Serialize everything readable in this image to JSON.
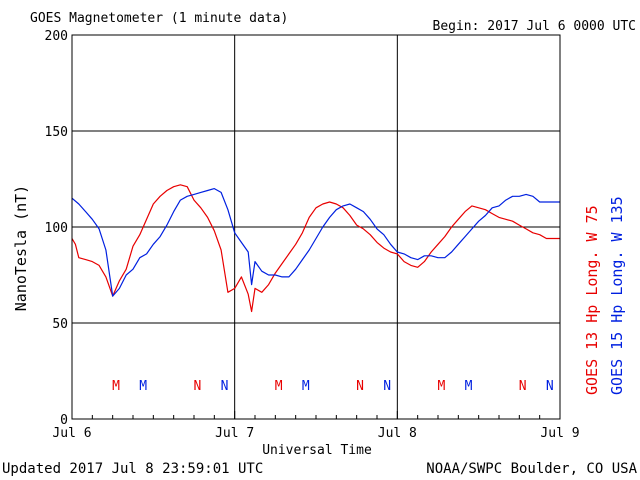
{
  "chart_data": {
    "type": "line",
    "title": "GOES Magnetometer (1 minute data)",
    "begin_label": "Begin:  2017 Jul 6 0000 UTC",
    "xlabel": "Universal Time",
    "ylabel": "NanoTesla (nT)",
    "ylim": [
      0,
      200
    ],
    "xlim": [
      0,
      72
    ],
    "y_ticks": [
      0,
      50,
      100,
      150,
      200
    ],
    "x_ticks": [
      {
        "hour": 0,
        "label": "Jul 6"
      },
      {
        "hour": 24,
        "label": "Jul 7"
      },
      {
        "hour": 48,
        "label": "Jul 8"
      },
      {
        "hour": 72,
        "label": "Jul 9"
      }
    ],
    "grid": true,
    "colors": {
      "red": "#e80000",
      "blue": "#0020e0"
    },
    "series": [
      {
        "name": "GOES 13 Hp  Long. W 75",
        "color": "#e80000",
        "points": [
          [
            0,
            94
          ],
          [
            0.5,
            91
          ],
          [
            1,
            84
          ],
          [
            2,
            83
          ],
          [
            3,
            82
          ],
          [
            4,
            80
          ],
          [
            5,
            74
          ],
          [
            6,
            64
          ],
          [
            7,
            72
          ],
          [
            8,
            78
          ],
          [
            9,
            90
          ],
          [
            10,
            96
          ],
          [
            11,
            104
          ],
          [
            12,
            112
          ],
          [
            13,
            116
          ],
          [
            14,
            119
          ],
          [
            15,
            121
          ],
          [
            16,
            122
          ],
          [
            17,
            121
          ],
          [
            18,
            114
          ],
          [
            19,
            110
          ],
          [
            20,
            105
          ],
          [
            21,
            98
          ],
          [
            22,
            88
          ],
          [
            23,
            66
          ],
          [
            24,
            68
          ],
          [
            25,
            74
          ],
          [
            26,
            65
          ],
          [
            26.5,
            56
          ],
          [
            27,
            68
          ],
          [
            28,
            66
          ],
          [
            29,
            70
          ],
          [
            30,
            76
          ],
          [
            31,
            81
          ],
          [
            32,
            86
          ],
          [
            33,
            91
          ],
          [
            34,
            97
          ],
          [
            35,
            105
          ],
          [
            36,
            110
          ],
          [
            37,
            112
          ],
          [
            38,
            113
          ],
          [
            39,
            112
          ],
          [
            40,
            110
          ],
          [
            41,
            106
          ],
          [
            42,
            101
          ],
          [
            43,
            99
          ],
          [
            44,
            96
          ],
          [
            45,
            92
          ],
          [
            46,
            89
          ],
          [
            47,
            87
          ],
          [
            48,
            86
          ],
          [
            49,
            82
          ],
          [
            50,
            80
          ],
          [
            51,
            79
          ],
          [
            52,
            82
          ],
          [
            53,
            87
          ],
          [
            54,
            91
          ],
          [
            55,
            95
          ],
          [
            56,
            100
          ],
          [
            57,
            104
          ],
          [
            58,
            108
          ],
          [
            59,
            111
          ],
          [
            60,
            110
          ],
          [
            61,
            109
          ],
          [
            62,
            107
          ],
          [
            63,
            105
          ],
          [
            64,
            104
          ],
          [
            65,
            103
          ],
          [
            66,
            101
          ],
          [
            67,
            99
          ],
          [
            68,
            97
          ],
          [
            69,
            96
          ],
          [
            70,
            94
          ],
          [
            72,
            94
          ]
        ]
      },
      {
        "name": "GOES 15 Hp  Long. W 135",
        "color": "#0020e0",
        "points": [
          [
            0,
            115
          ],
          [
            1,
            112
          ],
          [
            2,
            108
          ],
          [
            3,
            104
          ],
          [
            4,
            99
          ],
          [
            5,
            88
          ],
          [
            6,
            64
          ],
          [
            7,
            68
          ],
          [
            8,
            75
          ],
          [
            9,
            78
          ],
          [
            10,
            84
          ],
          [
            11,
            86
          ],
          [
            12,
            91
          ],
          [
            13,
            95
          ],
          [
            14,
            101
          ],
          [
            15,
            108
          ],
          [
            16,
            114
          ],
          [
            17,
            116
          ],
          [
            18,
            117
          ],
          [
            19,
            118
          ],
          [
            20,
            119
          ],
          [
            21,
            120
          ],
          [
            22,
            118
          ],
          [
            23,
            109
          ],
          [
            24,
            97
          ],
          [
            25,
            92
          ],
          [
            26,
            87
          ],
          [
            26.5,
            70
          ],
          [
            27,
            82
          ],
          [
            28,
            77
          ],
          [
            29,
            75
          ],
          [
            30,
            75
          ],
          [
            31,
            74
          ],
          [
            32,
            74
          ],
          [
            33,
            78
          ],
          [
            34,
            83
          ],
          [
            35,
            88
          ],
          [
            36,
            94
          ],
          [
            37,
            100
          ],
          [
            38,
            105
          ],
          [
            39,
            109
          ],
          [
            40,
            111
          ],
          [
            41,
            112
          ],
          [
            42,
            110
          ],
          [
            43,
            108
          ],
          [
            44,
            104
          ],
          [
            45,
            99
          ],
          [
            46,
            96
          ],
          [
            47,
            91
          ],
          [
            48,
            87
          ],
          [
            49,
            86
          ],
          [
            50,
            84
          ],
          [
            51,
            83
          ],
          [
            52,
            85
          ],
          [
            53,
            85
          ],
          [
            54,
            84
          ],
          [
            55,
            84
          ],
          [
            56,
            87
          ],
          [
            57,
            91
          ],
          [
            58,
            95
          ],
          [
            59,
            99
          ],
          [
            60,
            103
          ],
          [
            61,
            106
          ],
          [
            62,
            110
          ],
          [
            63,
            111
          ],
          [
            64,
            114
          ],
          [
            65,
            116
          ],
          [
            66,
            116
          ],
          [
            67,
            117
          ],
          [
            68,
            116
          ],
          [
            69,
            113
          ],
          [
            70,
            113
          ],
          [
            71,
            113
          ],
          [
            72,
            113
          ]
        ]
      }
    ],
    "markers": [
      {
        "letter": "M",
        "hour": 6.5,
        "series": 0
      },
      {
        "letter": "M",
        "hour": 10.5,
        "series": 1
      },
      {
        "letter": "N",
        "hour": 18.5,
        "series": 0
      },
      {
        "letter": "N",
        "hour": 22.5,
        "series": 1
      },
      {
        "letter": "M",
        "hour": 30.5,
        "series": 0
      },
      {
        "letter": "M",
        "hour": 34.5,
        "series": 1
      },
      {
        "letter": "N",
        "hour": 42.5,
        "series": 0
      },
      {
        "letter": "N",
        "hour": 46.5,
        "series": 1
      },
      {
        "letter": "M",
        "hour": 54.5,
        "series": 0
      },
      {
        "letter": "M",
        "hour": 58.5,
        "series": 1
      },
      {
        "letter": "N",
        "hour": 66.5,
        "series": 0
      },
      {
        "letter": "N",
        "hour": 70.5,
        "series": 1
      }
    ],
    "legend_placement": "right-vertical"
  },
  "footer": {
    "updated": "Updated 2017 Jul  8 23:59:01 UTC",
    "credit": "NOAA/SWPC Boulder, CO USA"
  }
}
